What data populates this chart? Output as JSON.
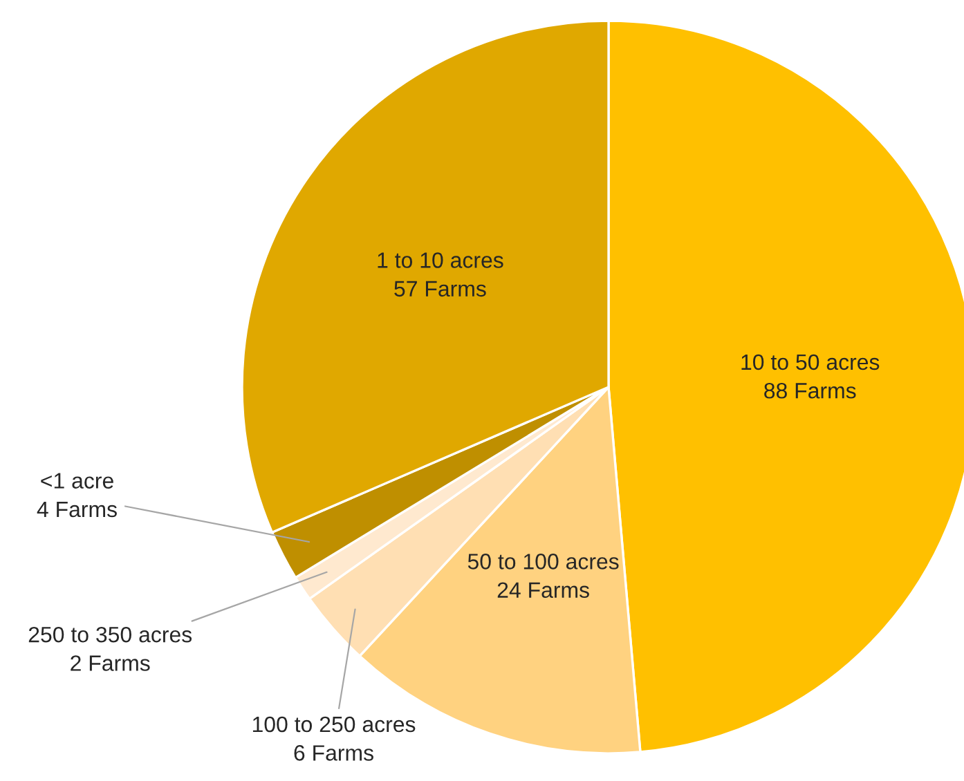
{
  "chart_data": {
    "type": "pie",
    "categories": [
      "10 to 50 acres",
      "50 to 100 acres",
      "100 to 250 acres",
      "250 to 350 acres",
      "<1 acre",
      "1 to 10 acres"
    ],
    "values": [
      88,
      24,
      6,
      2,
      4,
      57
    ],
    "value_labels": [
      "88 Farms",
      "24 Farms",
      "6 Farms",
      "2 Farms",
      "4 Farms",
      "57 Farms"
    ],
    "colors": [
      "#ffc000",
      "#ffd280",
      "#ffdfb3",
      "#ffe9cf",
      "#bf8f00",
      "#e0a800"
    ],
    "legend": false
  }
}
